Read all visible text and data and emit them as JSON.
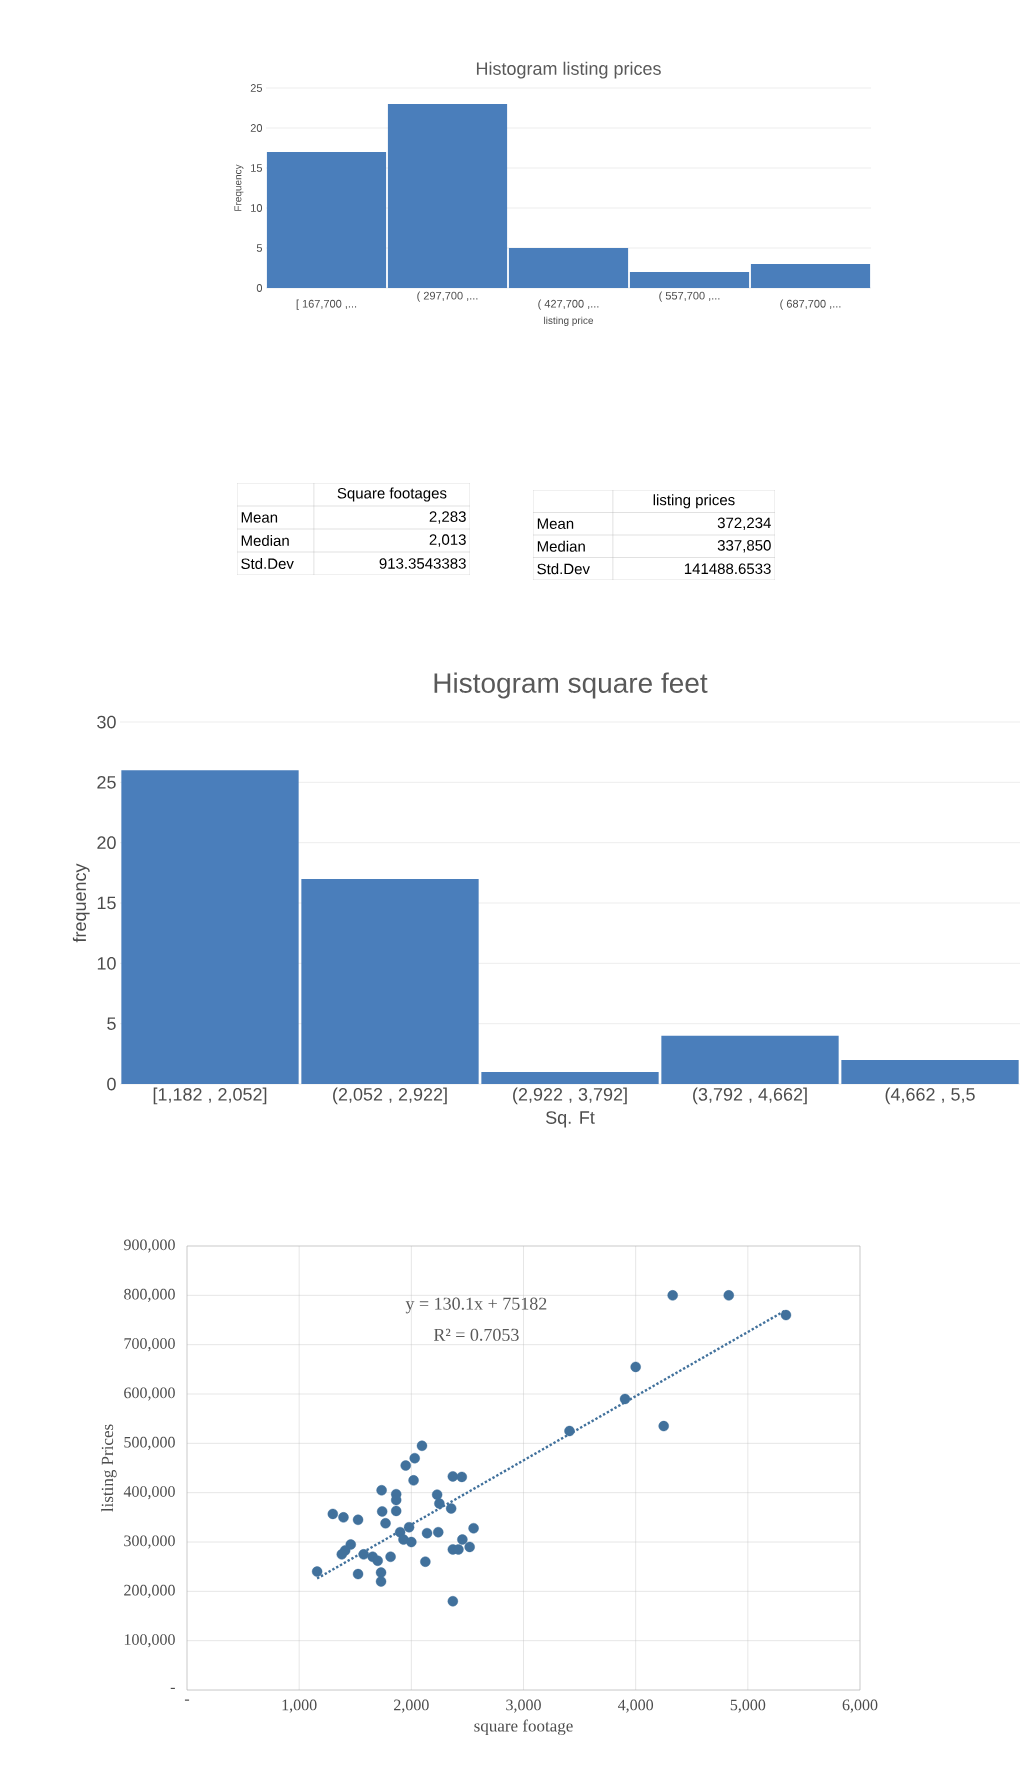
{
  "chart_data": [
    {
      "type": "bar",
      "title": "Histogram listing prices",
      "xlabel": "listing price",
      "ylabel": "Frequency",
      "categories": [
        "[ 167,700 ,...",
        "( 297,700 ,...",
        "( 427,700 ,...",
        "( 557,700 ,...",
        "( 687,700 ,..."
      ],
      "values": [
        17,
        23,
        5,
        2,
        3
      ],
      "color": "#4a7ebb",
      "ylim": [
        0,
        25
      ],
      "yticks": [
        0,
        5,
        10,
        15,
        20,
        25
      ],
      "grid": "y"
    },
    {
      "type": "other",
      "annotations": [
        "Square footages",
        "Mean",
        "2,283",
        "Median",
        "2,013",
        "Std.Dev",
        "913.3543383"
      ]
    },
    {
      "type": "other",
      "annotations": [
        "listing prices",
        "Mean",
        "372,234",
        "Median",
        "337,850",
        "Std.Dev",
        "141488.6533"
      ]
    },
    {
      "type": "bar",
      "title": "Histogram square feet",
      "xlabel": "Sq. Ft",
      "ylabel": "frequency",
      "categories": [
        "[1,182 , 2,052]",
        "(2,052 , 2,922]",
        "(2,922 , 3,792]",
        "(3,792 , 4,662]",
        "(4,662 , 5,5"
      ],
      "values": [
        26,
        17,
        1,
        4,
        2
      ],
      "color": "#4a7ebb",
      "ylim": [
        0,
        30
      ],
      "yticks": [
        0,
        5,
        10,
        15,
        20,
        25,
        30
      ],
      "grid": "y"
    },
    {
      "type": "scatter",
      "xlabel": "square footage",
      "ylabel": "listing Prices",
      "xlim": [
        0,
        6000
      ],
      "ylim": [
        0,
        900000
      ],
      "xticks": [
        {
          "value": 0,
          "label": "-"
        },
        {
          "value": 1000,
          "label": "1,000"
        },
        {
          "value": 2000,
          "label": "2,000"
        },
        {
          "value": 3000,
          "label": "3,000"
        },
        {
          "value": 4000,
          "label": "4,000"
        },
        {
          "value": 5000,
          "label": "5,000"
        },
        {
          "value": 6000,
          "label": "6,000"
        }
      ],
      "yticks": [
        {
          "value": 0,
          "label": "-"
        },
        {
          "value": 100000,
          "label": "100,000"
        },
        {
          "value": 200000,
          "label": "200,000"
        },
        {
          "value": 300000,
          "label": "300,000"
        },
        {
          "value": 400000,
          "label": "400,000"
        },
        {
          "value": 500000,
          "label": "500,000"
        },
        {
          "value": 600000,
          "label": "600,000"
        },
        {
          "value": 700000,
          "label": "700,000"
        },
        {
          "value": 800000,
          "label": "800,000"
        },
        {
          "value": 900000,
          "label": "900,000"
        }
      ],
      "grid": true,
      "annotations": [
        "y = 130.1x + 75182",
        "R² = 0.7053"
      ],
      "series": [
        {
          "type": "scatter",
          "color": "#41719c",
          "marker": "circle",
          "x": [
            1160,
            1300,
            1395,
            1525,
            1460,
            1410,
            1380,
            1525,
            1575,
            1655,
            1700,
            1815,
            1730,
            1730,
            1735,
            1740,
            1770,
            1865,
            1865,
            1865,
            1900,
            1980,
            1930,
            2000,
            1950,
            2030,
            2095,
            2020,
            2125,
            2140,
            2240,
            2230,
            2250,
            2355,
            2370,
            2450,
            2555,
            2455,
            2370,
            2420,
            2520,
            2370,
            3410,
            3905,
            4000,
            4250,
            4330,
            4830,
            5340
          ],
          "values": [
            240000,
            357000,
            350000,
            345000,
            295000,
            283000,
            275000,
            235000,
            275000,
            270000,
            262000,
            270000,
            238000,
            220000,
            405000,
            362000,
            338000,
            397000,
            385000,
            363000,
            320000,
            330000,
            305000,
            300000,
            455000,
            470000,
            495000,
            425000,
            260000,
            318000,
            320000,
            396000,
            378000,
            368000,
            433000,
            432000,
            328000,
            305000,
            285000,
            285000,
            290000,
            180000,
            525000,
            590000,
            655000,
            535000,
            800000,
            800000,
            760000
          ]
        },
        {
          "type": "line",
          "color": "#41719c",
          "marker": "none",
          "line_style": "dotted",
          "x": [
            1160,
            5340
          ],
          "values": [
            226000,
            770000
          ]
        }
      ]
    }
  ]
}
